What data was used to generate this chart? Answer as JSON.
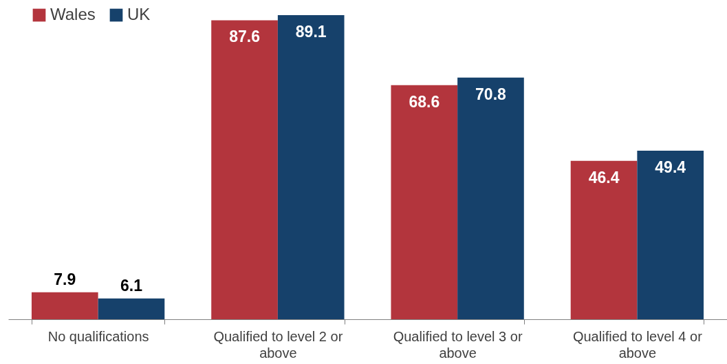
{
  "chart_data": {
    "type": "bar",
    "categories": [
      "No qualifications",
      "Qualified to level 2 or above",
      "Qualified to level 3 or above",
      "Qualified to level 4 or above"
    ],
    "series": [
      {
        "name": "Wales",
        "color": "#b3353d",
        "values": [
          7.9,
          87.6,
          68.6,
          46.4
        ]
      },
      {
        "name": "UK",
        "color": "#16416b",
        "values": [
          6.1,
          89.1,
          70.8,
          49.4
        ]
      }
    ],
    "data_labels": true,
    "legend": "top left",
    "grid": false
  }
}
